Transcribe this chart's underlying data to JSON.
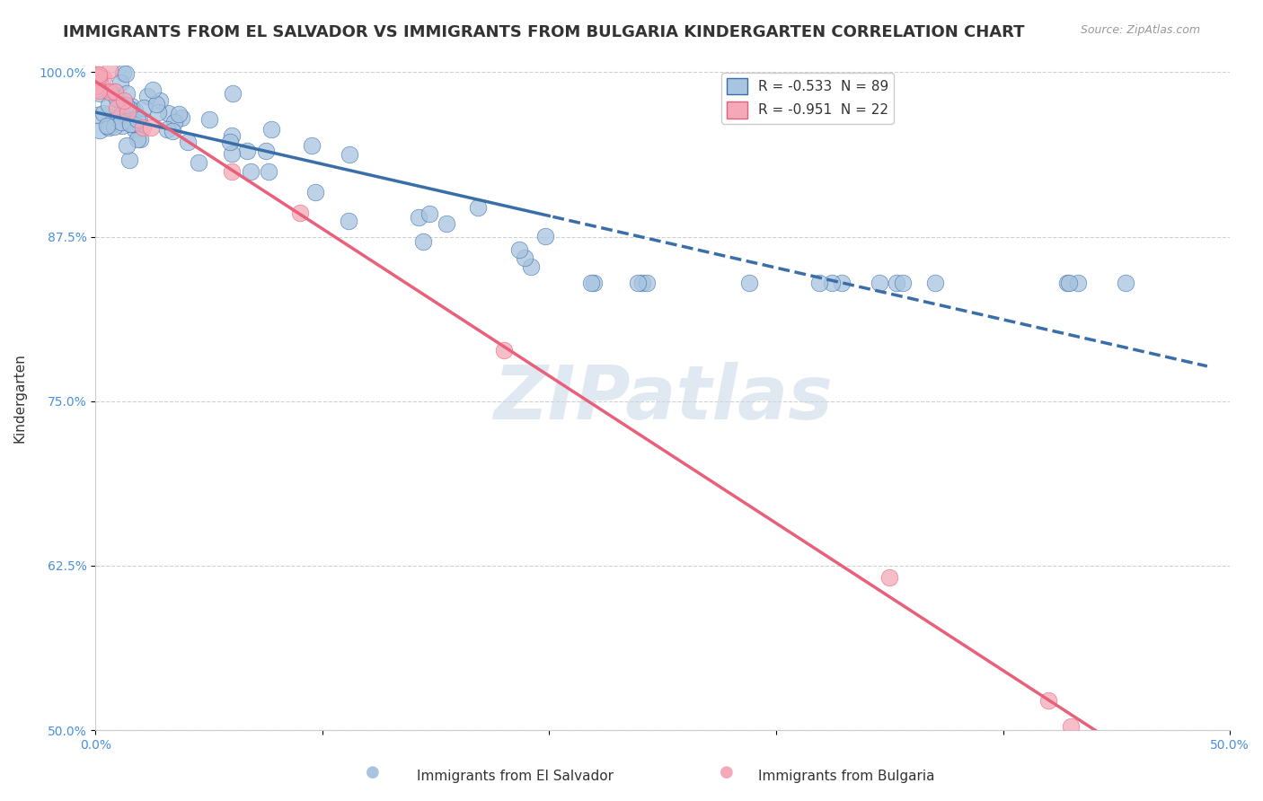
{
  "title": "IMMIGRANTS FROM EL SALVADOR VS IMMIGRANTS FROM BULGARIA KINDERGARTEN CORRELATION CHART",
  "source": "Source: ZipAtlas.com",
  "ylabel": "Kindergarten",
  "x_min": 0.0,
  "x_max": 0.5,
  "y_min": 0.5,
  "y_max": 1.005,
  "y_ticks": [
    0.5,
    0.625,
    0.75,
    0.875,
    1.0
  ],
  "y_tick_labels": [
    "50.0%",
    "62.5%",
    "75.0%",
    "87.5%",
    "100.0%"
  ],
  "x_ticks": [
    0.0,
    0.1,
    0.2,
    0.3,
    0.4,
    0.5
  ],
  "x_tick_labels": [
    "0.0%",
    "",
    "",
    "",
    "",
    "50.0%"
  ],
  "legend_labels": [
    "Immigrants from El Salvador",
    "Immigrants from Bulgaria"
  ],
  "el_salvador_R": -0.533,
  "el_salvador_N": 89,
  "bulgaria_R": -0.951,
  "bulgaria_N": 22,
  "blue_color": "#a8c4e0",
  "blue_line_color": "#3a6ea8",
  "pink_color": "#f4a8b8",
  "pink_line_color": "#e8607a",
  "grid_color": "#d0d0d0",
  "watermark_color": "#c8d8e8",
  "background_color": "#ffffff",
  "title_fontsize": 13,
  "axis_label_fontsize": 11,
  "tick_fontsize": 10,
  "legend_fontsize": 11,
  "es_solid_split": 0.2,
  "es_line_xmax": 0.49,
  "bg_line_xmax": 0.455
}
